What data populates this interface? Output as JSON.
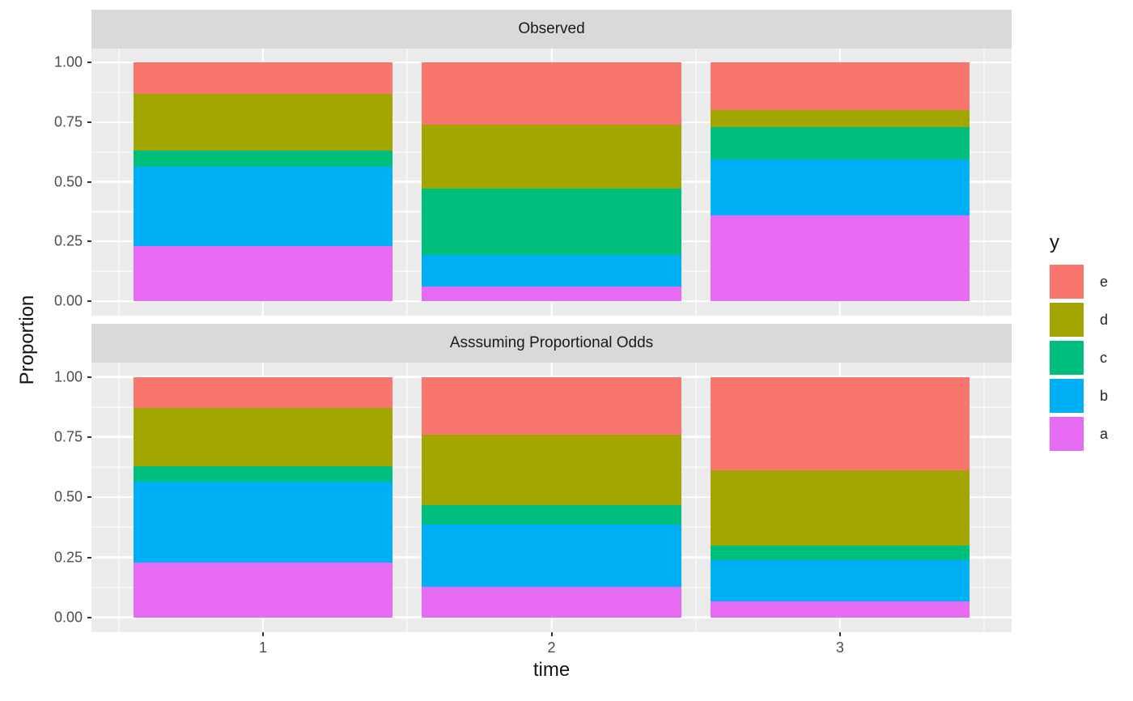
{
  "chart_data": {
    "type": "bar",
    "stacked": true,
    "xlabel": "time",
    "ylabel": "Proportion",
    "legend_title": "y",
    "categories": [
      1,
      2,
      3
    ],
    "xtick_labels": [
      "1",
      "2",
      "3"
    ],
    "yticks": [
      0,
      0.25,
      0.5,
      0.75,
      1
    ],
    "ytick_labels": [
      "0.00",
      "0.25",
      "0.50",
      "0.75",
      "1.00"
    ],
    "minor_yticks": [
      0.125,
      0.375,
      0.625,
      0.875
    ],
    "minor_xticks": [
      0.5,
      1.5,
      2.5,
      3.5
    ],
    "xlim": [
      0.405,
      3.595
    ],
    "ylim": [
      -0.061,
      1.059
    ],
    "bar_width": 0.9,
    "grid": "white major+minor on grey panel",
    "legend_position": "right",
    "legend_order": [
      "e",
      "d",
      "c",
      "b",
      "a"
    ],
    "colors": {
      "a": "#E76BF3",
      "b": "#00B0F6",
      "c": "#00BF7D",
      "d": "#A3A500",
      "e": "#F8766D"
    },
    "facets": [
      {
        "label": "Observed",
        "series": [
          {
            "name": "a",
            "values": [
              0.23,
              0.06,
              0.36
            ]
          },
          {
            "name": "b",
            "values": [
              0.335,
              0.133,
              0.235
            ]
          },
          {
            "name": "c",
            "values": [
              0.065,
              0.278,
              0.135
            ]
          },
          {
            "name": "d",
            "values": [
              0.24,
              0.268,
              0.07
            ]
          },
          {
            "name": "e",
            "values": [
              0.13,
              0.261,
              0.2
            ]
          }
        ]
      },
      {
        "label": "Asssuming Proportional Odds",
        "series": [
          {
            "name": "a",
            "values": [
              0.23,
              0.128,
              0.068
            ]
          },
          {
            "name": "b",
            "values": [
              0.335,
              0.258,
              0.172
            ]
          },
          {
            "name": "c",
            "values": [
              0.065,
              0.081,
              0.06
            ]
          },
          {
            "name": "d",
            "values": [
              0.24,
              0.294,
              0.312
            ]
          },
          {
            "name": "e",
            "values": [
              0.13,
              0.239,
              0.388
            ]
          }
        ]
      }
    ]
  },
  "theme": {
    "panel_bg": "#ebebeb",
    "strip_bg": "#d9d9d9",
    "grid_color": "#ffffff",
    "tick_color": "#333333",
    "tick_label_color": "#4d4d4d"
  }
}
